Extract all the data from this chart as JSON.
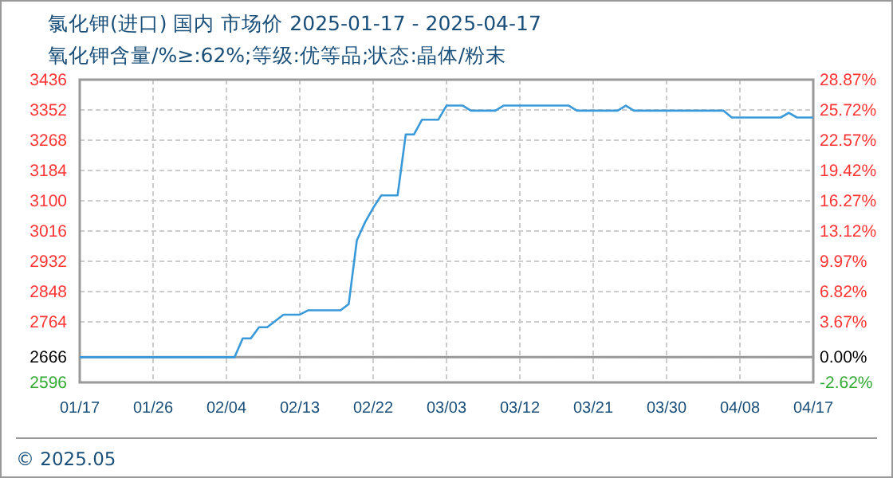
{
  "chart_data": {
    "type": "line",
    "title": "氯化钾(进口) 国内 市场价 2025-01-17 - 2025-04-17",
    "subtitle": "氧化钾含量/%≥:62%;等级:优等品;状态:晶体/粉末",
    "x": [
      "2025-01-17",
      "2025-02-05",
      "2025-02-06",
      "2025-02-07",
      "2025-02-08",
      "2025-02-09",
      "2025-02-11",
      "2025-02-13",
      "2025-02-14",
      "2025-02-18",
      "2025-02-19",
      "2025-02-20",
      "2025-02-21",
      "2025-02-22",
      "2025-02-23",
      "2025-02-25",
      "2025-02-26",
      "2025-02-27",
      "2025-02-28",
      "2025-03-02",
      "2025-03-03",
      "2025-03-05",
      "2025-03-06",
      "2025-03-09",
      "2025-03-10",
      "2025-03-18",
      "2025-03-19",
      "2025-03-24",
      "2025-03-25",
      "2025-03-26",
      "2025-04-06",
      "2025-04-07",
      "2025-04-13",
      "2025-04-14",
      "2025-04-15",
      "2025-04-17"
    ],
    "series": [
      {
        "color": "#3a9ad9",
        "values": [
          2666,
          2666,
          2718,
          2718,
          2749,
          2749,
          2784,
          2784,
          2796,
          2796,
          2813,
          2990,
          3040,
          3080,
          3115,
          3115,
          3284,
          3284,
          3325,
          3325,
          3364,
          3364,
          3350,
          3350,
          3364,
          3364,
          3350,
          3350,
          3364,
          3350,
          3350,
          3331,
          3331,
          3344,
          3331,
          3331
        ]
      }
    ],
    "xlim": [
      "2025-01-17",
      "2025-04-17"
    ],
    "xticks": [
      {
        "value": "2025-01-17",
        "label": "01/17"
      },
      {
        "value": "2025-01-26",
        "label": "01/26"
      },
      {
        "value": "2025-02-04",
        "label": "02/04"
      },
      {
        "value": "2025-02-13",
        "label": "02/13"
      },
      {
        "value": "2025-02-22",
        "label": "02/22"
      },
      {
        "value": "2025-03-03",
        "label": "03/03"
      },
      {
        "value": "2025-03-12",
        "label": "03/12"
      },
      {
        "value": "2025-03-21",
        "label": "03/21"
      },
      {
        "value": "2025-03-30",
        "label": "03/30"
      },
      {
        "value": "2025-04-08",
        "label": "04/08"
      },
      {
        "value": "2025-04-17",
        "label": "04/17"
      }
    ],
    "ylim": [
      2596,
      3436
    ],
    "yticks": [
      2596,
      2666,
      2764,
      2848,
      2932,
      3016,
      3100,
      3184,
      3268,
      3352,
      3436
    ],
    "y2lim": [
      -2.62,
      28.87
    ],
    "y2ticks": [
      {
        "value": -2.62,
        "label": "-2.62%"
      },
      {
        "value": 0,
        "label": "0.00%"
      },
      {
        "value": 3.67,
        "label": "3.67%"
      },
      {
        "value": 6.82,
        "label": "6.82%"
      },
      {
        "value": 9.97,
        "label": "9.97%"
      },
      {
        "value": 13.12,
        "label": "13.12%"
      },
      {
        "value": 16.27,
        "label": "16.27%"
      },
      {
        "value": 19.42,
        "label": "19.42%"
      },
      {
        "value": 22.57,
        "label": "22.57%"
      },
      {
        "value": 25.72,
        "label": "25.72%"
      },
      {
        "value": 28.87,
        "label": "28.87%"
      }
    ],
    "ref_lines": [
      {
        "axis": "y",
        "value": 2666,
        "color": "#999999"
      }
    ],
    "grid": true,
    "marker": "none",
    "line_style": "solid",
    "annotations": [
      "© 2025.05"
    ]
  }
}
